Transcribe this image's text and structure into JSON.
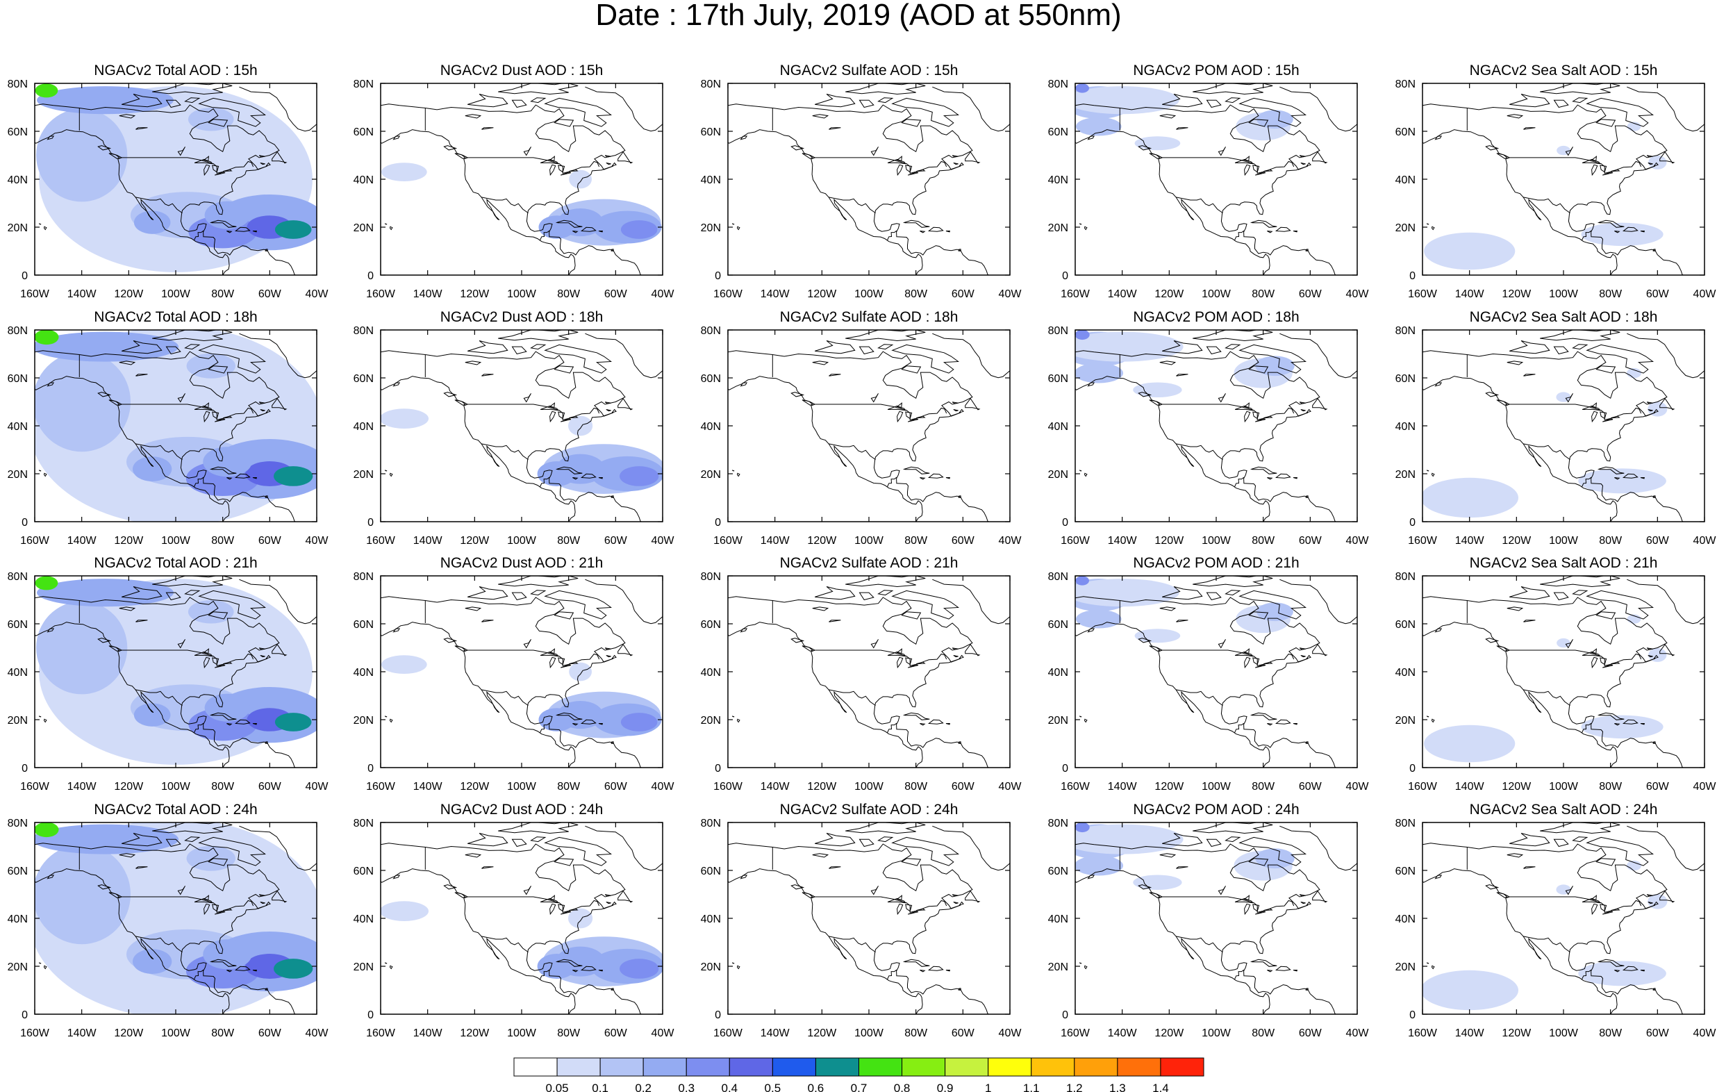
{
  "figure_title": "Date : 17th July, 2019 (AOD at 550nm)",
  "lon_ticks": [
    "160W",
    "140W",
    "120W",
    "100W",
    "80W",
    "60W",
    "40W"
  ],
  "lat_ticks": [
    "0",
    "20N",
    "40N",
    "60N",
    "80N"
  ],
  "species": [
    {
      "key": "total",
      "title_prefix": "NGACv2 Total AOD"
    },
    {
      "key": "dust",
      "title_prefix": "NGACv2 Dust AOD"
    },
    {
      "key": "sulfate",
      "title_prefix": "NGACv2 Sulfate AOD"
    },
    {
      "key": "pom",
      "title_prefix": "NGACv2 POM AOD"
    },
    {
      "key": "seasalt",
      "title_prefix": "NGACv2 Sea Salt AOD"
    }
  ],
  "panel_titles": [
    [
      "NGACv2 Total AOD : 15h",
      "NGACv2 Dust AOD : 15h",
      "NGACv2 Sulfate AOD : 15h",
      "NGACv2 POM AOD : 15h",
      "NGACv2 Sea Salt AOD : 15h"
    ],
    [
      "NGACv2 Total AOD : 18h",
      "NGACv2 Dust AOD : 18h",
      "NGACv2 Sulfate AOD : 18h",
      "NGACv2 POM AOD : 18h",
      "NGACv2 Sea Salt AOD : 18h"
    ],
    [
      "NGACv2 Total AOD : 21h",
      "NGACv2 Dust AOD : 21h",
      "NGACv2 Sulfate AOD : 21h",
      "NGACv2 POM AOD : 21h",
      "NGACv2 Sea Salt AOD : 21h"
    ],
    [
      "NGACv2 Total AOD : 24h",
      "NGACv2 Dust AOD : 24h",
      "NGACv2 Sulfate AOD : 24h",
      "NGACv2 POM AOD : 24h",
      "NGACv2 Sea Salt  AOD : 24h"
    ]
  ],
  "colorbar": {
    "labels": [
      "0.05",
      "0.1",
      "0.2",
      "0.3",
      "0.4",
      "0.5",
      "0.6",
      "0.7",
      "0.8",
      "0.9",
      "1",
      "1.1",
      "1.2",
      "1.3",
      "1.4"
    ],
    "colors": [
      "#ffffff",
      "#d2dcf8",
      "#b3c4f5",
      "#94abf2",
      "#7d8ef0",
      "#5f67e6",
      "#1f5bed",
      "#0e8f8f",
      "#44e312",
      "#86ee12",
      "#c6f23e",
      "#ffff0b",
      "#ffc20a",
      "#ffa00a",
      "#ff700a",
      "#ff230a"
    ]
  }
}
